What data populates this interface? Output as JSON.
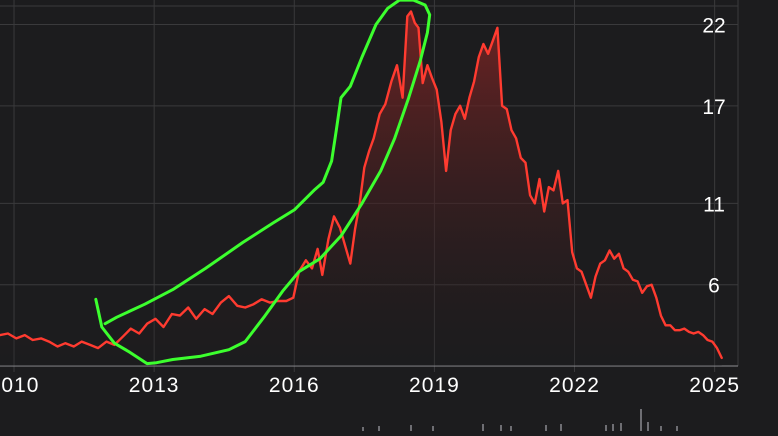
{
  "colors": {
    "background": "#1c1c1e",
    "grid": "#3a3a3c",
    "series_line": "#ff3b30",
    "fill_top": "#7a2424",
    "annotation": "#3cff2e",
    "tick_text": "#ffffff"
  },
  "chart_data": {
    "type": "area",
    "title": "",
    "xlabel": "",
    "ylabel": "",
    "y_axis_position": "right",
    "grid": "horizontal and vertical",
    "legend": "none",
    "xlim": [
      2009.7,
      2025.5
    ],
    "ylim": [
      1,
      23.2
    ],
    "x_ticks": [
      2010,
      2013,
      2016,
      2019,
      2022,
      2025
    ],
    "x_tick_labels": [
      "2010",
      "2013",
      "2016",
      "2019",
      "2022",
      "2025"
    ],
    "y_ticks": [
      6,
      11,
      17,
      22
    ],
    "y_tick_labels": [
      "6",
      "11",
      "17",
      "22"
    ],
    "series": [
      {
        "points": [
          [
            2009.7,
            2.9
          ],
          [
            2009.87,
            3.0
          ],
          [
            2010.05,
            2.7
          ],
          [
            2010.23,
            2.9
          ],
          [
            2010.4,
            2.6
          ],
          [
            2010.58,
            2.7
          ],
          [
            2010.75,
            2.5
          ],
          [
            2010.93,
            2.2
          ],
          [
            2011.1,
            2.4
          ],
          [
            2011.28,
            2.2
          ],
          [
            2011.45,
            2.5
          ],
          [
            2011.63,
            2.3
          ],
          [
            2011.8,
            2.1
          ],
          [
            2011.98,
            2.5
          ],
          [
            2012.15,
            2.3
          ],
          [
            2012.33,
            2.8
          ],
          [
            2012.5,
            3.3
          ],
          [
            2012.68,
            3.0
          ],
          [
            2012.85,
            3.6
          ],
          [
            2013.03,
            3.9
          ],
          [
            2013.2,
            3.4
          ],
          [
            2013.38,
            4.2
          ],
          [
            2013.55,
            4.1
          ],
          [
            2013.73,
            4.6
          ],
          [
            2013.9,
            3.9
          ],
          [
            2014.08,
            4.5
          ],
          [
            2014.25,
            4.2
          ],
          [
            2014.43,
            4.9
          ],
          [
            2014.6,
            5.3
          ],
          [
            2014.78,
            4.7
          ],
          [
            2014.95,
            4.6
          ],
          [
            2015.13,
            4.8
          ],
          [
            2015.3,
            5.1
          ],
          [
            2015.48,
            4.9
          ],
          [
            2015.65,
            5.0
          ],
          [
            2015.83,
            5.0
          ],
          [
            2015.98,
            5.2
          ],
          [
            2016.1,
            6.8
          ],
          [
            2016.25,
            7.5
          ],
          [
            2016.38,
            7.0
          ],
          [
            2016.5,
            8.2
          ],
          [
            2016.6,
            6.6
          ],
          [
            2016.73,
            8.8
          ],
          [
            2016.85,
            10.2
          ],
          [
            2016.98,
            9.5
          ],
          [
            2017.1,
            8.3
          ],
          [
            2017.2,
            7.3
          ],
          [
            2017.3,
            9.4
          ],
          [
            2017.4,
            11.0
          ],
          [
            2017.5,
            13.2
          ],
          [
            2017.6,
            14.2
          ],
          [
            2017.7,
            15.0
          ],
          [
            2017.83,
            16.5
          ],
          [
            2017.95,
            17.1
          ],
          [
            2018.08,
            18.5
          ],
          [
            2018.2,
            19.5
          ],
          [
            2018.32,
            17.5
          ],
          [
            2018.42,
            22.5
          ],
          [
            2018.5,
            22.8
          ],
          [
            2018.58,
            22.1
          ],
          [
            2018.66,
            21.8
          ],
          [
            2018.75,
            18.4
          ],
          [
            2018.85,
            19.5
          ],
          [
            2018.95,
            18.7
          ],
          [
            2019.05,
            18.0
          ],
          [
            2019.15,
            16.0
          ],
          [
            2019.25,
            13.0
          ],
          [
            2019.35,
            15.5
          ],
          [
            2019.45,
            16.5
          ],
          [
            2019.55,
            17.0
          ],
          [
            2019.65,
            16.2
          ],
          [
            2019.75,
            17.5
          ],
          [
            2019.85,
            18.5
          ],
          [
            2019.95,
            20.0
          ],
          [
            2020.05,
            20.8
          ],
          [
            2020.15,
            20.2
          ],
          [
            2020.25,
            21.0
          ],
          [
            2020.35,
            21.8
          ],
          [
            2020.45,
            17.0
          ],
          [
            2020.55,
            16.8
          ],
          [
            2020.65,
            15.5
          ],
          [
            2020.75,
            15.0
          ],
          [
            2020.85,
            13.8
          ],
          [
            2020.95,
            13.5
          ],
          [
            2021.05,
            11.5
          ],
          [
            2021.15,
            11.0
          ],
          [
            2021.25,
            12.5
          ],
          [
            2021.35,
            10.5
          ],
          [
            2021.45,
            12.0
          ],
          [
            2021.55,
            11.8
          ],
          [
            2021.65,
            13.0
          ],
          [
            2021.75,
            11.0
          ],
          [
            2021.85,
            11.2
          ],
          [
            2021.95,
            8.0
          ],
          [
            2022.05,
            7.0
          ],
          [
            2022.15,
            6.8
          ],
          [
            2022.25,
            6.0
          ],
          [
            2022.35,
            5.2
          ],
          [
            2022.45,
            6.5
          ],
          [
            2022.55,
            7.3
          ],
          [
            2022.65,
            7.5
          ],
          [
            2022.75,
            8.1
          ],
          [
            2022.85,
            7.6
          ],
          [
            2022.95,
            7.9
          ],
          [
            2023.05,
            7.0
          ],
          [
            2023.15,
            6.8
          ],
          [
            2023.25,
            6.3
          ],
          [
            2023.35,
            6.2
          ],
          [
            2023.45,
            5.5
          ],
          [
            2023.55,
            5.9
          ],
          [
            2023.65,
            6.0
          ],
          [
            2023.75,
            5.2
          ],
          [
            2023.85,
            4.1
          ],
          [
            2023.95,
            3.5
          ],
          [
            2024.05,
            3.5
          ],
          [
            2024.15,
            3.2
          ],
          [
            2024.25,
            3.2
          ],
          [
            2024.35,
            3.3
          ],
          [
            2024.45,
            3.1
          ],
          [
            2024.55,
            3.0
          ],
          [
            2024.65,
            3.1
          ],
          [
            2024.75,
            2.9
          ],
          [
            2024.85,
            2.6
          ],
          [
            2024.95,
            2.5
          ],
          [
            2025.05,
            2.1
          ],
          [
            2025.15,
            1.5
          ]
        ]
      }
    ],
    "annotations": [
      {
        "kind": "freehand-outline",
        "color": "#3cff2e",
        "description": "hand-drawn loop enclosing the 2012–2018 rise",
        "points": [
          [
            2011.75,
            5.1
          ],
          [
            2011.88,
            3.4
          ],
          [
            2012.15,
            2.4
          ],
          [
            2012.45,
            1.9
          ],
          [
            2012.85,
            1.15
          ],
          [
            2013.05,
            1.2
          ],
          [
            2013.4,
            1.4
          ],
          [
            2014.0,
            1.6
          ],
          [
            2014.6,
            2.0
          ],
          [
            2014.95,
            2.5
          ],
          [
            2015.35,
            4.0
          ],
          [
            2015.75,
            5.6
          ],
          [
            2016.1,
            6.8
          ],
          [
            2016.55,
            7.6
          ],
          [
            2017.0,
            9.0
          ],
          [
            2017.45,
            11.0
          ],
          [
            2017.85,
            13.0
          ],
          [
            2018.15,
            15.0
          ],
          [
            2018.45,
            17.5
          ],
          [
            2018.7,
            19.8
          ],
          [
            2018.85,
            21.5
          ],
          [
            2018.9,
            22.6
          ],
          [
            2018.8,
            23.2
          ],
          [
            2018.55,
            23.5
          ],
          [
            2018.25,
            23.5
          ],
          [
            2018.0,
            23.0
          ],
          [
            2017.75,
            22.0
          ],
          [
            2017.45,
            20.0
          ],
          [
            2017.2,
            18.2
          ],
          [
            2017.0,
            17.5
          ],
          [
            2016.9,
            15.5
          ],
          [
            2016.8,
            13.6
          ],
          [
            2016.62,
            12.3
          ],
          [
            2016.42,
            11.8
          ],
          [
            2016.0,
            10.6
          ],
          [
            2015.55,
            9.8
          ],
          [
            2014.9,
            8.6
          ],
          [
            2014.1,
            7.0
          ],
          [
            2013.4,
            5.7
          ],
          [
            2012.8,
            4.8
          ],
          [
            2012.2,
            4.0
          ],
          [
            2011.95,
            3.6
          ]
        ]
      }
    ]
  }
}
